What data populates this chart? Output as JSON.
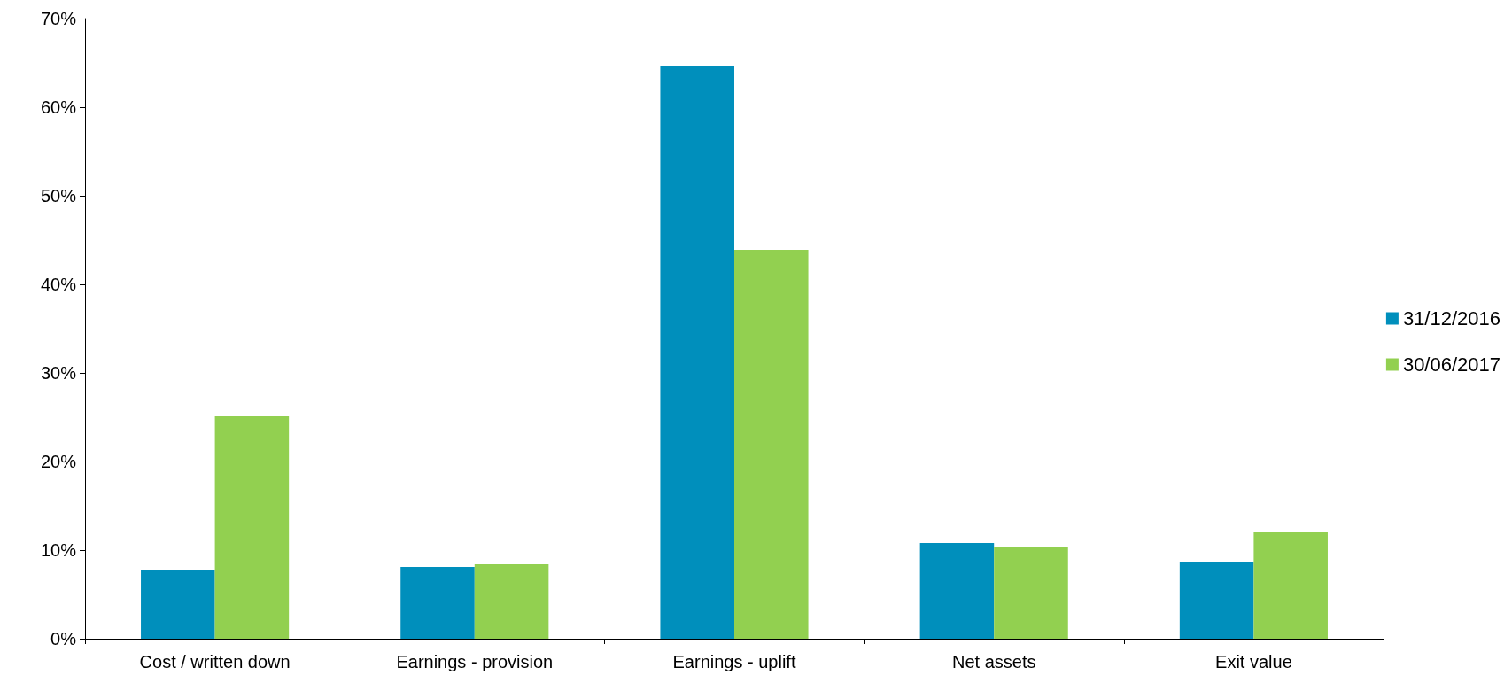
{
  "chart_data": {
    "type": "bar",
    "categories": [
      "Cost / written down",
      "Earnings - provision",
      "Earnings - uplift",
      "Net assets",
      "Exit value"
    ],
    "series": [
      {
        "name": "31/12/2016",
        "color": "#008fbc",
        "values": [
          7.7,
          8.1,
          64.6,
          10.8,
          8.7
        ]
      },
      {
        "name": "30/06/2017",
        "color": "#92d050",
        "values": [
          25.1,
          8.4,
          43.9,
          10.3,
          12.1
        ]
      }
    ],
    "ylim": [
      0,
      70
    ],
    "yticks": [
      {
        "value": 0,
        "label": "0%"
      },
      {
        "value": 10,
        "label": "10%"
      },
      {
        "value": 20,
        "label": "20%"
      },
      {
        "value": 30,
        "label": "30%"
      },
      {
        "value": 40,
        "label": "40%"
      },
      {
        "value": 50,
        "label": "50%"
      },
      {
        "value": 60,
        "label": "60%"
      },
      {
        "value": 70,
        "label": "70%"
      }
    ],
    "grid": false,
    "legend": "right"
  }
}
